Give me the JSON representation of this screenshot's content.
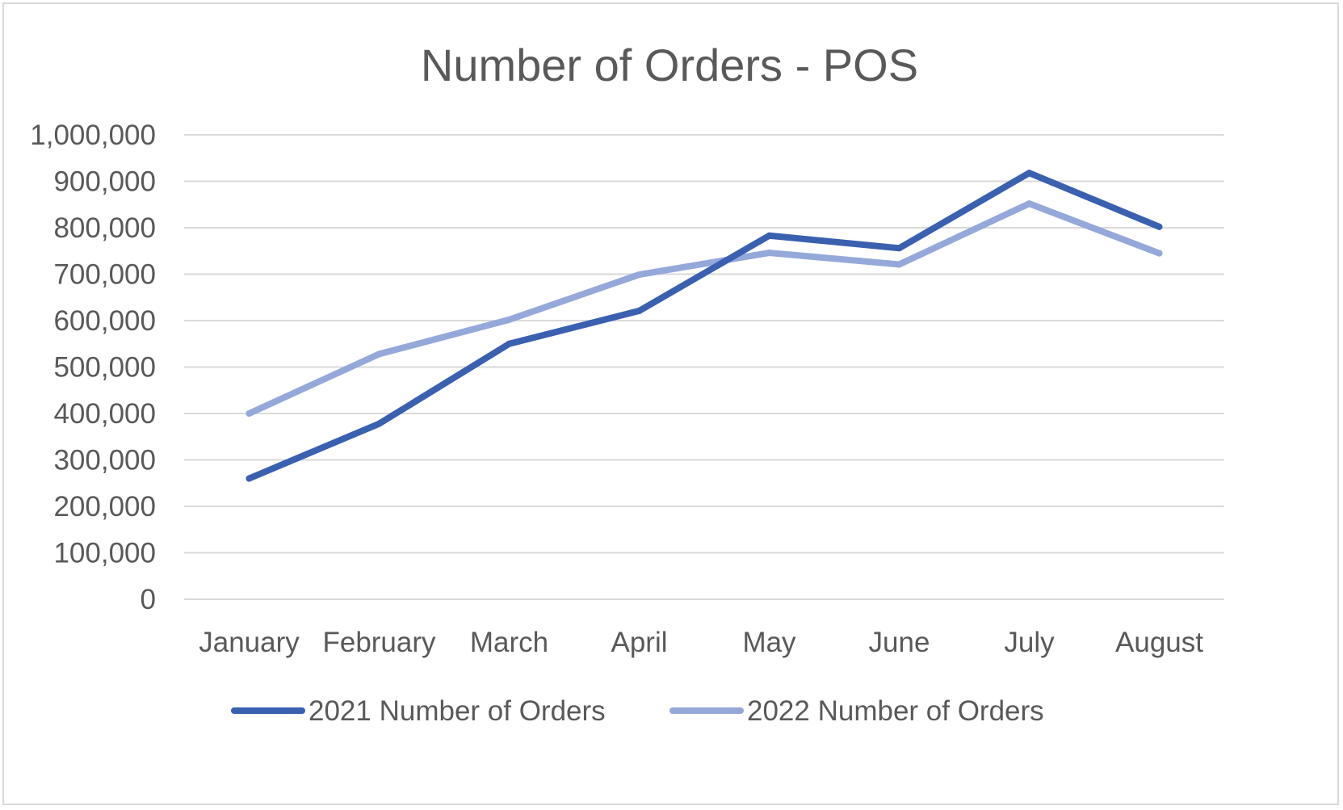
{
  "chart_data": {
    "type": "line",
    "title": "Number of Orders - POS",
    "xlabel": "",
    "ylabel": "",
    "categories": [
      "January",
      "February",
      "March",
      "April",
      "May",
      "June",
      "July",
      "August"
    ],
    "y_ticks": [
      "0",
      "100,000",
      "200,000",
      "300,000",
      "400,000",
      "500,000",
      "600,000",
      "700,000",
      "800,000",
      "900,000",
      "1,000,000"
    ],
    "ylim": [
      0,
      1000000
    ],
    "grid": true,
    "legend_position": "bottom",
    "series": [
      {
        "name": "2021 Number of Orders",
        "color": "#3a60b0",
        "values": [
          260000,
          378000,
          550000,
          621000,
          783000,
          756000,
          918000,
          802000
        ]
      },
      {
        "name": "2022 Number of Orders",
        "color": "#94a8da",
        "values": [
          400000,
          528000,
          602000,
          699000,
          746000,
          721000,
          852000,
          745000
        ]
      }
    ]
  }
}
